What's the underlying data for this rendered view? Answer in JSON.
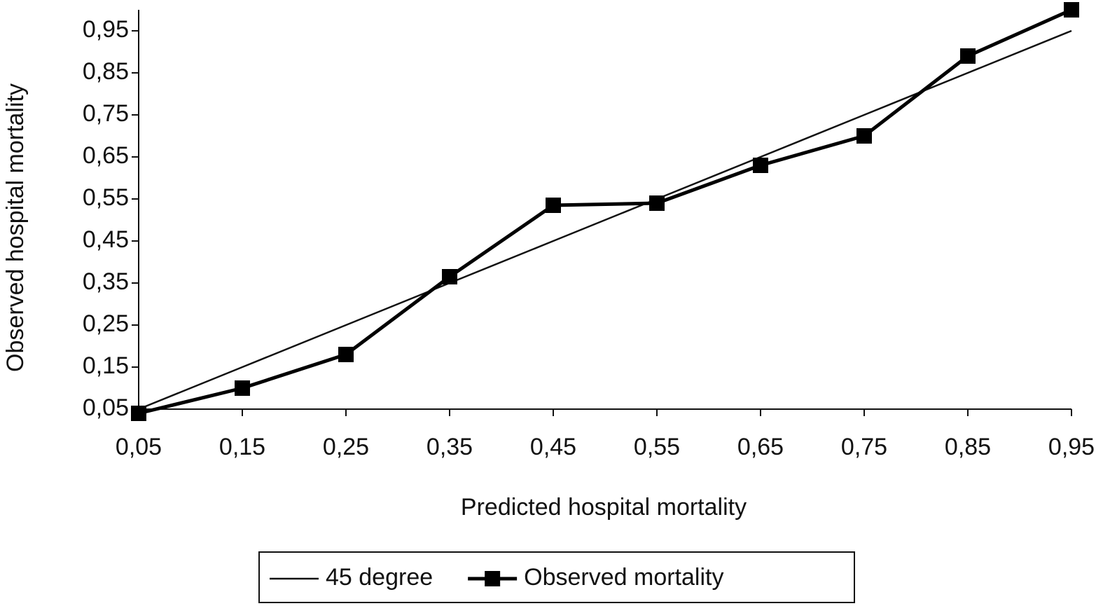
{
  "chart_data": {
    "type": "line",
    "x_label": "Predicted hospital mortality",
    "y_label": "Observed hospital mortality",
    "x": [
      0.05,
      0.15,
      0.25,
      0.35,
      0.45,
      0.55,
      0.65,
      0.75,
      0.85,
      0.95
    ],
    "series": [
      {
        "name": "45 degree",
        "color": "#111111",
        "marker": "none",
        "values": [
          0.05,
          0.15,
          0.25,
          0.35,
          0.45,
          0.55,
          0.65,
          0.75,
          0.85,
          0.95
        ]
      },
      {
        "name": "Observed mortality",
        "color": "#000000",
        "marker": "square",
        "values": [
          0.04,
          0.1,
          0.18,
          0.365,
          0.535,
          0.54,
          0.63,
          0.7,
          0.89,
          1.0
        ]
      }
    ],
    "xlim": [
      0.05,
      0.95
    ],
    "ylim": [
      0.05,
      1.0
    ],
    "xticks": [
      {
        "value": 0.05,
        "label": "0,05"
      },
      {
        "value": 0.15,
        "label": "0,15"
      },
      {
        "value": 0.25,
        "label": "0,25"
      },
      {
        "value": 0.35,
        "label": "0,35"
      },
      {
        "value": 0.45,
        "label": "0,45"
      },
      {
        "value": 0.55,
        "label": "0,55"
      },
      {
        "value": 0.65,
        "label": "0,65"
      },
      {
        "value": 0.75,
        "label": "0,75"
      },
      {
        "value": 0.85,
        "label": "0,85"
      },
      {
        "value": 0.95,
        "label": "0,95"
      }
    ],
    "yticks": [
      {
        "value": 0.05,
        "label": "0,05"
      },
      {
        "value": 0.15,
        "label": "0,15"
      },
      {
        "value": 0.25,
        "label": "0,25"
      },
      {
        "value": 0.35,
        "label": "0,35"
      },
      {
        "value": 0.45,
        "label": "0,45"
      },
      {
        "value": 0.55,
        "label": "0,55"
      },
      {
        "value": 0.65,
        "label": "0,65"
      },
      {
        "value": 0.75,
        "label": "0,75"
      },
      {
        "value": 0.85,
        "label": "0,85"
      },
      {
        "value": 0.95,
        "label": "0,95"
      }
    ],
    "grid": false,
    "legend": "bottom"
  }
}
